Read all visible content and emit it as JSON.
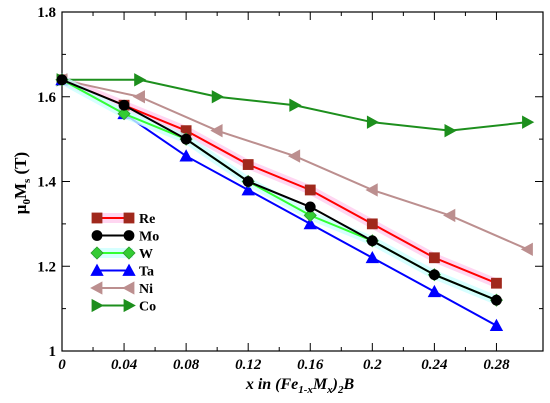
{
  "chart_data": {
    "type": "line",
    "ylabel": {
      "main": "μ",
      "sub0": "0",
      "main2": "M",
      "sub1": "s",
      "unit": " (T)"
    },
    "xlabel": {
      "prefix": "x in (Fe",
      "sub1": "1-x",
      "mid": "M",
      "sub2": "x",
      "mid2": ")",
      "sub3": "2",
      "suffix": "B"
    },
    "xlim": [
      0,
      0.31
    ],
    "ylim": [
      1.0,
      1.8
    ],
    "xticks": [
      0,
      0.04,
      0.08,
      0.12,
      0.16,
      0.2,
      0.24,
      0.28
    ],
    "xtick_labels": [
      "0",
      "0.04",
      "0.08",
      "0.12",
      "0.16",
      "0.2",
      "0.24",
      "0.28"
    ],
    "yticks": [
      1.0,
      1.2,
      1.4,
      1.6,
      1.8
    ],
    "ytick_labels": [
      "1",
      "1.2",
      "1.4",
      "1.6",
      "1.8"
    ],
    "grid": false,
    "legend_position": "left-lower",
    "series": [
      {
        "name": "Re",
        "line_color": "#ff0000",
        "marker_color": "#a0281c",
        "marker": "square",
        "halo": "#ffccee",
        "x": [
          0,
          0.04,
          0.08,
          0.12,
          0.16,
          0.2,
          0.24,
          0.28
        ],
        "y": [
          1.64,
          1.58,
          1.52,
          1.44,
          1.38,
          1.3,
          1.22,
          1.16
        ]
      },
      {
        "name": "Mo",
        "line_color": "#000000",
        "marker_color": "#000000",
        "marker": "circle",
        "halo": null,
        "x": [
          0,
          0.04,
          0.08,
          0.12,
          0.16,
          0.2,
          0.24,
          0.28
        ],
        "y": [
          1.64,
          1.58,
          1.5,
          1.4,
          1.34,
          1.26,
          1.18,
          1.12
        ]
      },
      {
        "name": "W",
        "line_color": "#33ff33",
        "marker_color": "#33cc33",
        "marker": "diamond",
        "halo": "#ccffff",
        "x": [
          0,
          0.04,
          0.08,
          0.12,
          0.16,
          0.2,
          0.24,
          0.28
        ],
        "y": [
          1.64,
          1.56,
          1.5,
          1.4,
          1.32,
          1.26,
          1.18,
          1.12
        ]
      },
      {
        "name": "Ta",
        "line_color": "#0000ff",
        "marker_color": "#0000ff",
        "marker": "triangle-up",
        "halo": null,
        "x": [
          0,
          0.04,
          0.08,
          0.12,
          0.16,
          0.2,
          0.24,
          0.28
        ],
        "y": [
          1.64,
          1.56,
          1.46,
          1.38,
          1.3,
          1.22,
          1.14,
          1.06
        ]
      },
      {
        "name": "Ni",
        "line_color": "#bc8f8f",
        "marker_color": "#bc8f8f",
        "marker": "triangle-left",
        "halo": null,
        "x": [
          0,
          0.05,
          0.1,
          0.15,
          0.2,
          0.25,
          0.3
        ],
        "y": [
          1.64,
          1.6,
          1.52,
          1.46,
          1.38,
          1.32,
          1.24
        ]
      },
      {
        "name": "Co",
        "line_color": "#1d8f1d",
        "marker_color": "#1d8f1d",
        "marker": "triangle-right",
        "halo": null,
        "x": [
          0,
          0.05,
          0.1,
          0.15,
          0.2,
          0.25,
          0.3
        ],
        "y": [
          1.64,
          1.64,
          1.6,
          1.58,
          1.54,
          1.52,
          1.54
        ]
      }
    ]
  }
}
